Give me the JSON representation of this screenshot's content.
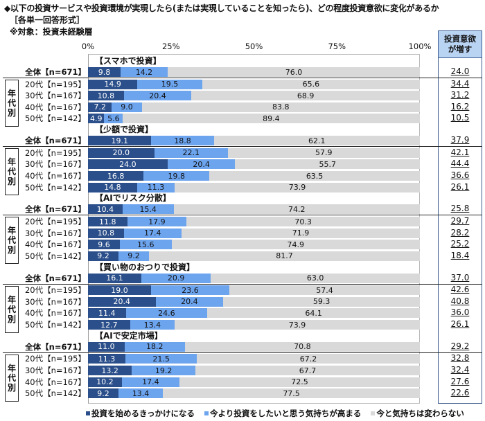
{
  "header": {
    "title": "◆以下の投資サービスや投資環境が実現したら(または実現していることを知ったら)、どの程度投資意欲に変化があるか",
    "format": "［各単一回答形式］",
    "target": "※対象：投資未経験層"
  },
  "right_column": {
    "header_line1": "投資意欲",
    "header_line2": "が増す"
  },
  "age_group_label": [
    "年",
    "代",
    "別"
  ],
  "colors": {
    "s1": "#2b4f8a",
    "s2": "#6da4ee",
    "s3": "#d9d9d9"
  },
  "chart_data": {
    "type": "bar",
    "orientation": "horizontal",
    "stacked": true,
    "title": "◆以下の投資サービスや投資環境が実現したら(または実現していることを知ったら)、どの程度投資意欲に変化があるか",
    "xlabel": "",
    "ylabel": "",
    "xlim": [
      0,
      100
    ],
    "x_ticks": [
      "0%",
      "25%",
      "50%",
      "75%",
      "100%"
    ],
    "legend": [
      "投資を始めるきっかけになる",
      "今より投資をしたいと思う気持ちが高まる",
      "今と気持ちは変わらない"
    ],
    "legend_position": "bottom",
    "extra_column_title": "投資意欲が増す",
    "row_labels": [
      "全体【n=671】",
      "20代【n=195】",
      "30代【n=167】",
      "40代【n=167】",
      "50代【n=142】"
    ],
    "groups": [
      {
        "name": "【スマホで投資】",
        "rows": [
          {
            "label": "全体【n=671】",
            "values": [
              9.8,
              14.2,
              76.0
            ],
            "increase": "24.0"
          },
          {
            "label": "20代【n=195】",
            "values": [
              14.9,
              19.5,
              65.6
            ],
            "increase": "34.4"
          },
          {
            "label": "30代【n=167】",
            "values": [
              10.8,
              20.4,
              68.9
            ],
            "increase": "31.2"
          },
          {
            "label": "40代【n=167】",
            "values": [
              7.2,
              9.0,
              83.8
            ],
            "increase": "16.2"
          },
          {
            "label": "50代【n=142】",
            "values": [
              4.9,
              5.6,
              89.4
            ],
            "increase": "10.5"
          }
        ]
      },
      {
        "name": "【少額で投資】",
        "rows": [
          {
            "label": "全体【n=671】",
            "values": [
              19.1,
              18.8,
              62.1
            ],
            "increase": "37.9"
          },
          {
            "label": "20代【n=195】",
            "values": [
              20.0,
              22.1,
              57.9
            ],
            "increase": "42.1"
          },
          {
            "label": "30代【n=167】",
            "values": [
              24.0,
              20.4,
              55.7
            ],
            "increase": "44.4"
          },
          {
            "label": "40代【n=167】",
            "values": [
              16.8,
              19.8,
              63.5
            ],
            "increase": "36.6"
          },
          {
            "label": "50代【n=142】",
            "values": [
              14.8,
              11.3,
              73.9
            ],
            "increase": "26.1"
          }
        ]
      },
      {
        "name": "【AIでリスク分散】",
        "rows": [
          {
            "label": "全体【n=671】",
            "values": [
              10.4,
              15.4,
              74.2
            ],
            "increase": "25.8"
          },
          {
            "label": "20代【n=195】",
            "values": [
              11.8,
              17.9,
              70.3
            ],
            "increase": "29.7"
          },
          {
            "label": "30代【n=167】",
            "values": [
              10.8,
              17.4,
              71.9
            ],
            "increase": "28.2"
          },
          {
            "label": "40代【n=167】",
            "values": [
              9.6,
              15.6,
              74.9
            ],
            "increase": "25.2"
          },
          {
            "label": "50代【n=142】",
            "values": [
              9.2,
              9.2,
              81.7
            ],
            "increase": "18.4"
          }
        ]
      },
      {
        "name": "【買い物のおつりで投資】",
        "rows": [
          {
            "label": "全体【n=671】",
            "values": [
              16.1,
              20.9,
              63.0
            ],
            "increase": "37.0"
          },
          {
            "label": "20代【n=195】",
            "values": [
              19.0,
              23.6,
              57.4
            ],
            "increase": "42.6"
          },
          {
            "label": "30代【n=167】",
            "values": [
              20.4,
              20.4,
              59.3
            ],
            "increase": "40.8"
          },
          {
            "label": "40代【n=167】",
            "values": [
              11.4,
              24.6,
              64.1
            ],
            "increase": "36.0"
          },
          {
            "label": "50代【n=142】",
            "values": [
              12.7,
              13.4,
              73.9
            ],
            "increase": "26.1"
          }
        ]
      },
      {
        "name": "【AIで安定市場】",
        "rows": [
          {
            "label": "全体【n=671】",
            "values": [
              11.0,
              18.2,
              70.8
            ],
            "increase": "29.2"
          },
          {
            "label": "20代【n=195】",
            "values": [
              11.3,
              21.5,
              67.2
            ],
            "increase": "32.8"
          },
          {
            "label": "30代【n=167】",
            "values": [
              13.2,
              19.2,
              67.7
            ],
            "increase": "32.4"
          },
          {
            "label": "40代【n=167】",
            "values": [
              10.2,
              17.4,
              72.5
            ],
            "increase": "27.6"
          },
          {
            "label": "50代【n=142】",
            "values": [
              9.2,
              13.4,
              77.5
            ],
            "increase": "22.6"
          }
        ]
      }
    ]
  }
}
